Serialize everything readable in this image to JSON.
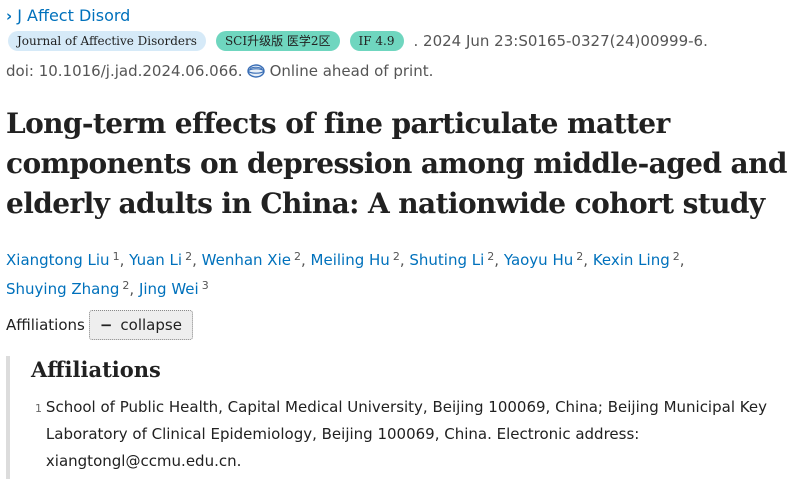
{
  "journal_link": {
    "chevron": "›",
    "label": "J Affect Disord"
  },
  "badges": {
    "journal": "Journal of Affective Disorders",
    "sci": "SCI升级版 医学2区",
    "impact_factor": "IF 4.9"
  },
  "citation": ". 2024 Jun 23:S0165-0327(24)00999-6.",
  "doi": {
    "text": "doi: 10.1016/j.jad.2024.06.066.",
    "status": "Online ahead of print.",
    "icon": "globe-icon"
  },
  "title": "Long-term effects of fine particulate matter components on depression among middle-aged and elderly adults in China: A nationwide cohort study",
  "authors": [
    {
      "name": "Xiangtong Liu",
      "aff": "1"
    },
    {
      "name": "Yuan Li",
      "aff": "2"
    },
    {
      "name": "Wenhan Xie",
      "aff": "2"
    },
    {
      "name": "Meiling Hu",
      "aff": "2"
    },
    {
      "name": "Shuting Li",
      "aff": "2"
    },
    {
      "name": "Yaoyu Hu",
      "aff": "2"
    },
    {
      "name": "Kexin Ling",
      "aff": "2"
    },
    {
      "name": "Shuying Zhang",
      "aff": "2"
    },
    {
      "name": "Jing Wei",
      "aff": "3"
    }
  ],
  "affiliations_toggle": {
    "label": "Affiliations",
    "button_symbol": "−",
    "button_label": "collapse"
  },
  "affiliations": {
    "heading": "Affiliations",
    "items": [
      {
        "number": "1",
        "text": "School of Public Health, Capital Medical University, Beijing 100069, China; Beijing Municipal Key Laboratory of Clinical Epidemiology, Beijing 100069, China. Electronic address: xiangtongl@ccmu.edu.cn."
      }
    ]
  },
  "colors": {
    "link": "#0071bc",
    "badge_journal": "#d6eaf8",
    "badge_green": "#6fd6bf",
    "text": "#212121",
    "muted": "#555555"
  }
}
